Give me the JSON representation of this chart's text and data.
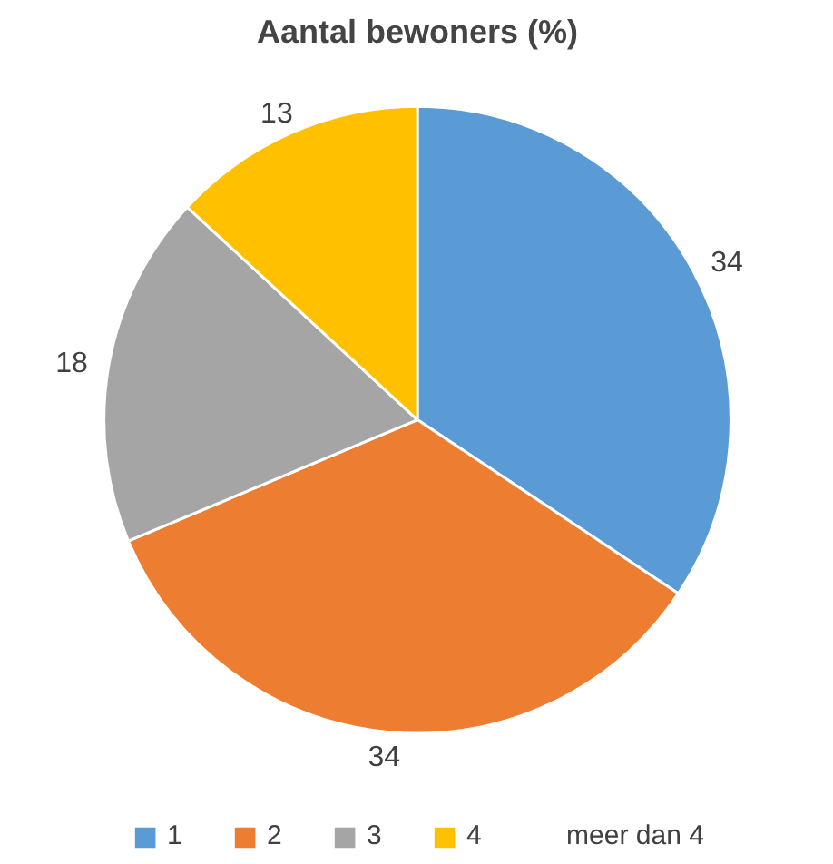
{
  "chart_data": {
    "type": "pie",
    "title": "Aantal bewoners (%)",
    "categories": [
      "1",
      "2",
      "3",
      "4",
      "meer dan 4"
    ],
    "values": [
      34,
      34,
      18,
      13,
      0
    ],
    "colors": [
      "#5b9bd5",
      "#ed7d31",
      "#a5a5a5",
      "#ffc000",
      "#4472c4"
    ],
    "value_labels": [
      "34",
      "34",
      "18",
      "13",
      null
    ],
    "legend": "bottom"
  }
}
